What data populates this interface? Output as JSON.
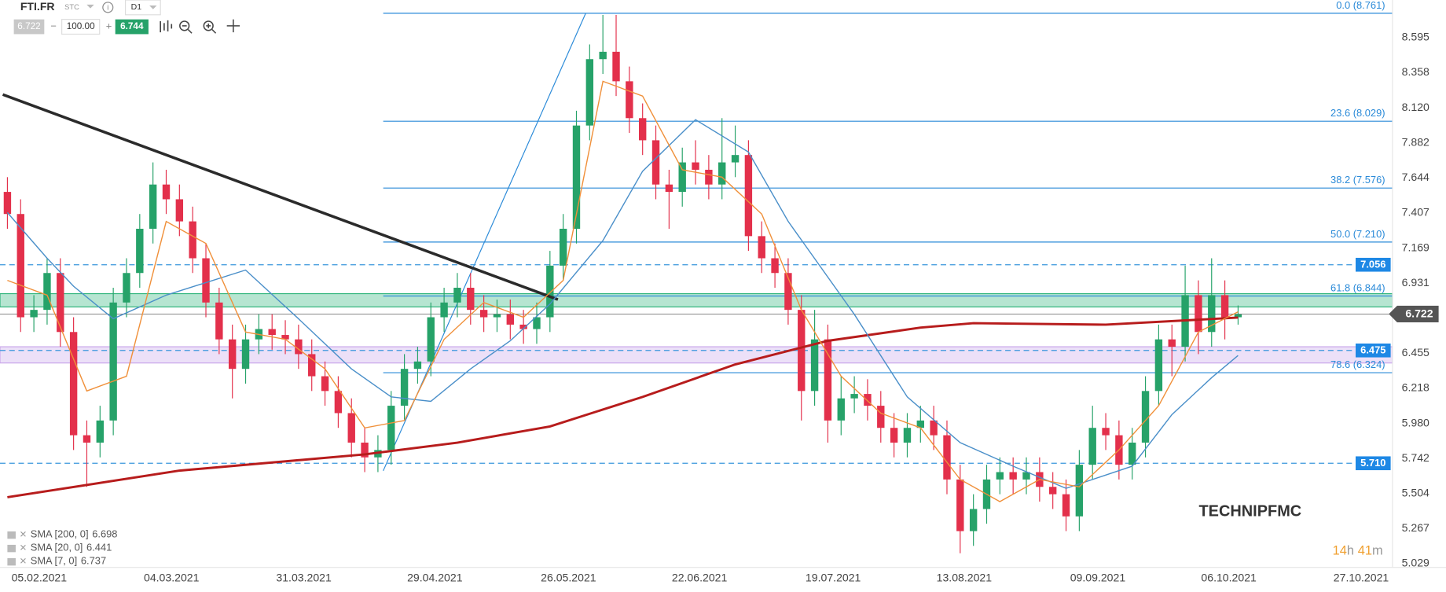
{
  "header": {
    "symbol": "FTI.FR",
    "exchange": "STC",
    "timeframe": "D1",
    "bid": "6.722",
    "volume": "100.00",
    "ask": "6.744"
  },
  "chart_data": {
    "type": "candlestick",
    "open": [
      7.55,
      7.4,
      6.7,
      6.75,
      7.0,
      6.6,
      5.9,
      5.85,
      6.0,
      6.8,
      7.0,
      7.3,
      7.6,
      7.5,
      7.35,
      7.1,
      6.8,
      6.55,
      6.35,
      6.55,
      6.62,
      6.58,
      6.55,
      6.45,
      6.3,
      6.2,
      6.05,
      5.85,
      5.75,
      5.8,
      6.1,
      6.35,
      6.4,
      6.7,
      6.8,
      6.9,
      6.75,
      6.7,
      6.72,
      6.65,
      6.62,
      6.7,
      7.05,
      7.3,
      8.0,
      8.45,
      8.5,
      8.3,
      8.05,
      7.9,
      7.6,
      7.55,
      7.75,
      7.7,
      7.6,
      7.75,
      7.8,
      7.25,
      7.1,
      7.0,
      6.75,
      6.2,
      6.55,
      6.0,
      6.15,
      6.18,
      6.1,
      5.95,
      5.85,
      5.95,
      6.0,
      5.9,
      5.6,
      5.25,
      5.4,
      5.6,
      5.65,
      5.6,
      5.65,
      5.55,
      5.5,
      5.35,
      5.7,
      5.95,
      5.9,
      5.7,
      5.85,
      6.2,
      6.55,
      6.5,
      6.85,
      6.6,
      6.85,
      6.7
    ],
    "high": [
      7.65,
      7.5,
      6.85,
      7.1,
      7.1,
      6.7,
      6.0,
      6.1,
      6.9,
      7.1,
      7.4,
      7.75,
      7.7,
      7.6,
      7.45,
      7.2,
      6.9,
      6.65,
      6.65,
      6.72,
      6.72,
      6.68,
      6.65,
      6.55,
      6.4,
      6.3,
      6.15,
      5.95,
      5.9,
      6.2,
      6.45,
      6.5,
      6.8,
      6.9,
      7.0,
      7.0,
      6.85,
      6.82,
      6.82,
      6.75,
      6.8,
      7.15,
      7.4,
      8.1,
      8.55,
      8.75,
      8.75,
      8.4,
      8.15,
      8.0,
      7.7,
      7.85,
      7.9,
      7.8,
      8.05,
      8.0,
      7.9,
      7.35,
      7.2,
      7.1,
      6.85,
      6.75,
      6.65,
      6.3,
      6.3,
      6.28,
      6.2,
      6.05,
      6.05,
      6.1,
      6.1,
      6.0,
      5.7,
      5.5,
      5.7,
      5.75,
      5.75,
      5.75,
      5.75,
      5.65,
      5.6,
      5.8,
      6.1,
      6.05,
      6.0,
      5.95,
      6.3,
      6.65,
      6.65,
      7.05,
      6.95,
      7.1,
      6.95,
      6.78
    ],
    "low": [
      7.3,
      6.6,
      6.6,
      6.65,
      6.5,
      5.8,
      5.55,
      5.75,
      5.9,
      6.7,
      6.9,
      7.2,
      7.4,
      7.25,
      7.0,
      6.7,
      6.45,
      6.15,
      6.25,
      6.45,
      6.48,
      6.45,
      6.35,
      6.2,
      6.1,
      5.95,
      5.75,
      5.65,
      5.65,
      5.7,
      6.0,
      6.25,
      6.3,
      6.6,
      6.7,
      6.65,
      6.6,
      6.6,
      6.55,
      6.52,
      6.52,
      6.6,
      6.95,
      7.2,
      7.9,
      8.35,
      8.2,
      7.95,
      7.8,
      7.5,
      7.3,
      7.45,
      7.6,
      7.5,
      7.5,
      7.65,
      7.15,
      7.0,
      6.9,
      6.65,
      6.0,
      6.1,
      5.85,
      5.9,
      6.05,
      6.0,
      5.85,
      5.75,
      5.75,
      5.85,
      5.8,
      5.5,
      5.1,
      5.15,
      5.3,
      5.5,
      5.5,
      5.5,
      5.45,
      5.4,
      5.25,
      5.25,
      5.6,
      5.8,
      5.6,
      5.6,
      5.75,
      6.1,
      6.3,
      6.4,
      6.45,
      6.5,
      6.55,
      6.65
    ],
    "close": [
      7.4,
      6.7,
      6.75,
      7.0,
      6.6,
      5.9,
      5.85,
      6.0,
      6.8,
      7.0,
      7.3,
      7.6,
      7.5,
      7.35,
      7.1,
      6.8,
      6.55,
      6.35,
      6.55,
      6.62,
      6.58,
      6.55,
      6.45,
      6.3,
      6.2,
      6.05,
      5.85,
      5.75,
      5.8,
      6.1,
      6.35,
      6.4,
      6.7,
      6.8,
      6.9,
      6.75,
      6.7,
      6.72,
      6.65,
      6.62,
      6.7,
      7.05,
      7.3,
      8.0,
      8.45,
      8.5,
      8.3,
      8.05,
      7.9,
      7.6,
      7.55,
      7.75,
      7.7,
      7.6,
      7.75,
      7.8,
      7.25,
      7.1,
      7.0,
      6.75,
      6.2,
      6.55,
      6.0,
      6.15,
      6.18,
      6.1,
      5.95,
      5.85,
      5.95,
      6.0,
      5.9,
      5.6,
      5.25,
      5.4,
      5.6,
      5.65,
      5.6,
      5.65,
      5.55,
      5.5,
      5.35,
      5.7,
      5.95,
      5.9,
      5.7,
      5.85,
      6.2,
      6.55,
      6.5,
      6.85,
      6.6,
      6.85,
      6.7,
      6.72
    ],
    "colors": {
      "up": "#26a269",
      "down": "#e3304b"
    },
    "xlim": [
      -0.56,
      104.67
    ],
    "xticks": [
      {
        "value": 2.4,
        "label": "05.02.2021"
      },
      {
        "value": 12.4,
        "label": "04.03.2021"
      },
      {
        "value": 22.4,
        "label": "31.03.2021"
      },
      {
        "value": 32.3,
        "label": "29.04.2021"
      },
      {
        "value": 42.4,
        "label": "26.05.2021"
      },
      {
        "value": 52.3,
        "label": "22.06.2021"
      },
      {
        "value": 62.4,
        "label": "19.07.2021"
      },
      {
        "value": 72.3,
        "label": "13.08.2021"
      },
      {
        "value": 82.4,
        "label": "09.09.2021"
      },
      {
        "value": 92.3,
        "label": "06.10.2021"
      },
      {
        "value": 102.3,
        "label": "27.10.2021"
      }
    ],
    "ylim": [
      5.004,
      8.851
    ],
    "yticks": [
      8.595,
      8.358,
      {
        "value": 8.12,
        "label": "8.120"
      },
      7.882,
      7.644,
      7.407,
      7.169,
      6.931,
      6.455,
      6.218,
      {
        "value": 5.98,
        "label": "5.980"
      },
      5.742,
      5.504,
      5.267,
      5.029
    ],
    "grid": true,
    "series": [
      {
        "name": "SMA [200, 0]",
        "color": "#b71c1c",
        "x": [
          0,
          13,
          27,
          34,
          41,
          48,
          55,
          62,
          69,
          73,
          83,
          93
        ],
        "values": [
          5.48,
          5.66,
          5.77,
          5.85,
          5.96,
          6.16,
          6.38,
          6.54,
          6.63,
          6.66,
          6.65,
          6.698
        ]
      },
      {
        "name": "SMA [20, 0]",
        "color": "#4a8fc9",
        "x": [
          0,
          3,
          5,
          8,
          12,
          18,
          22,
          26,
          29,
          32,
          35,
          38,
          41,
          45,
          48,
          52,
          56,
          59,
          64,
          68,
          72,
          76,
          80,
          85,
          88,
          91,
          93
        ],
        "values": [
          7.41,
          7.1,
          6.91,
          6.69,
          6.85,
          7.02,
          6.69,
          6.35,
          6.16,
          6.13,
          6.35,
          6.54,
          6.79,
          7.22,
          7.69,
          8.04,
          7.82,
          7.35,
          6.72,
          6.16,
          5.85,
          5.69,
          5.54,
          5.69,
          6.04,
          6.29,
          6.441
        ]
      },
      {
        "name": "SMA [7, 0]",
        "color": "#f0903a",
        "x": [
          0,
          3,
          6,
          9,
          12,
          15,
          18,
          21,
          24,
          27,
          30,
          33,
          36,
          39,
          42,
          45,
          48,
          51,
          54,
          57,
          60,
          63,
          66,
          69,
          72,
          75,
          78,
          81,
          84,
          87,
          90,
          93
        ],
        "values": [
          6.95,
          6.85,
          6.2,
          6.3,
          7.35,
          7.2,
          6.6,
          6.55,
          6.35,
          5.95,
          6.0,
          6.55,
          6.8,
          6.7,
          6.95,
          8.3,
          8.2,
          7.7,
          7.65,
          7.4,
          6.75,
          6.3,
          6.05,
          5.95,
          5.6,
          5.45,
          5.6,
          5.55,
          5.8,
          6.1,
          6.6,
          6.737
        ]
      }
    ],
    "fib_levels": [
      {
        "value": 8.761,
        "label": "0.0 (8.761)"
      },
      {
        "value": 8.029,
        "label": "23.6 (8.029)"
      },
      {
        "value": 7.576,
        "label": "38.2 (7.576)"
      },
      {
        "value": 7.21,
        "label": "50.0 (7.210)"
      },
      {
        "value": 6.844,
        "label": "61.8 (6.844)"
      },
      {
        "value": 6.324,
        "label": "78.6 (6.324)"
      }
    ],
    "fib_range": {
      "x": [
        28.4,
        43.7
      ],
      "y": [
        5.659,
        8.761
      ]
    },
    "levels": [
      {
        "value": 7.056,
        "label": "7.056"
      },
      {
        "value": 6.475,
        "label": "6.475"
      },
      {
        "value": 5.71,
        "label": "5.710"
      }
    ],
    "zones": [
      {
        "from": 6.77,
        "to": 6.86,
        "color": "#2eb47a"
      },
      {
        "from": 6.39,
        "to": 6.5,
        "color": "#c9a6ea"
      }
    ],
    "trendline": {
      "x": [
        -0.35,
        41.6
      ],
      "y": [
        8.21,
        6.82
      ]
    },
    "last_price": 6.722,
    "annotation": "TECHNIPFMC",
    "timer": [
      "14",
      "h",
      "41",
      "m"
    ]
  }
}
